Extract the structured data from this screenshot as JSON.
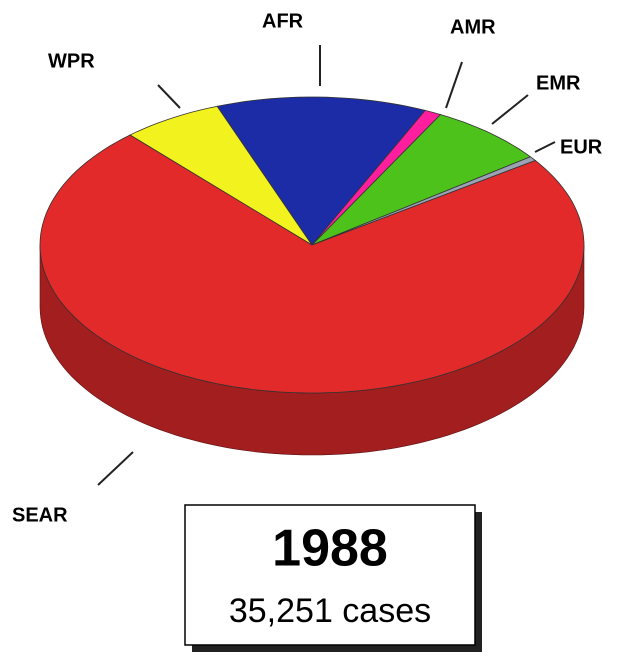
{
  "chart_data": {
    "type": "pie3d",
    "title": "1988",
    "subtitle": "35,251 cases",
    "categories": [
      "WPR",
      "AFR",
      "AMR",
      "EMR",
      "EUR",
      "SEAR"
    ],
    "values": [
      6,
      12.5,
      1,
      7,
      0.5,
      73
    ],
    "colors": [
      "#f2f21e",
      "#1c2ca6",
      "#ff1e9e",
      "#4cc21a",
      "#9aa2b4",
      "#e22a2a"
    ]
  }
}
